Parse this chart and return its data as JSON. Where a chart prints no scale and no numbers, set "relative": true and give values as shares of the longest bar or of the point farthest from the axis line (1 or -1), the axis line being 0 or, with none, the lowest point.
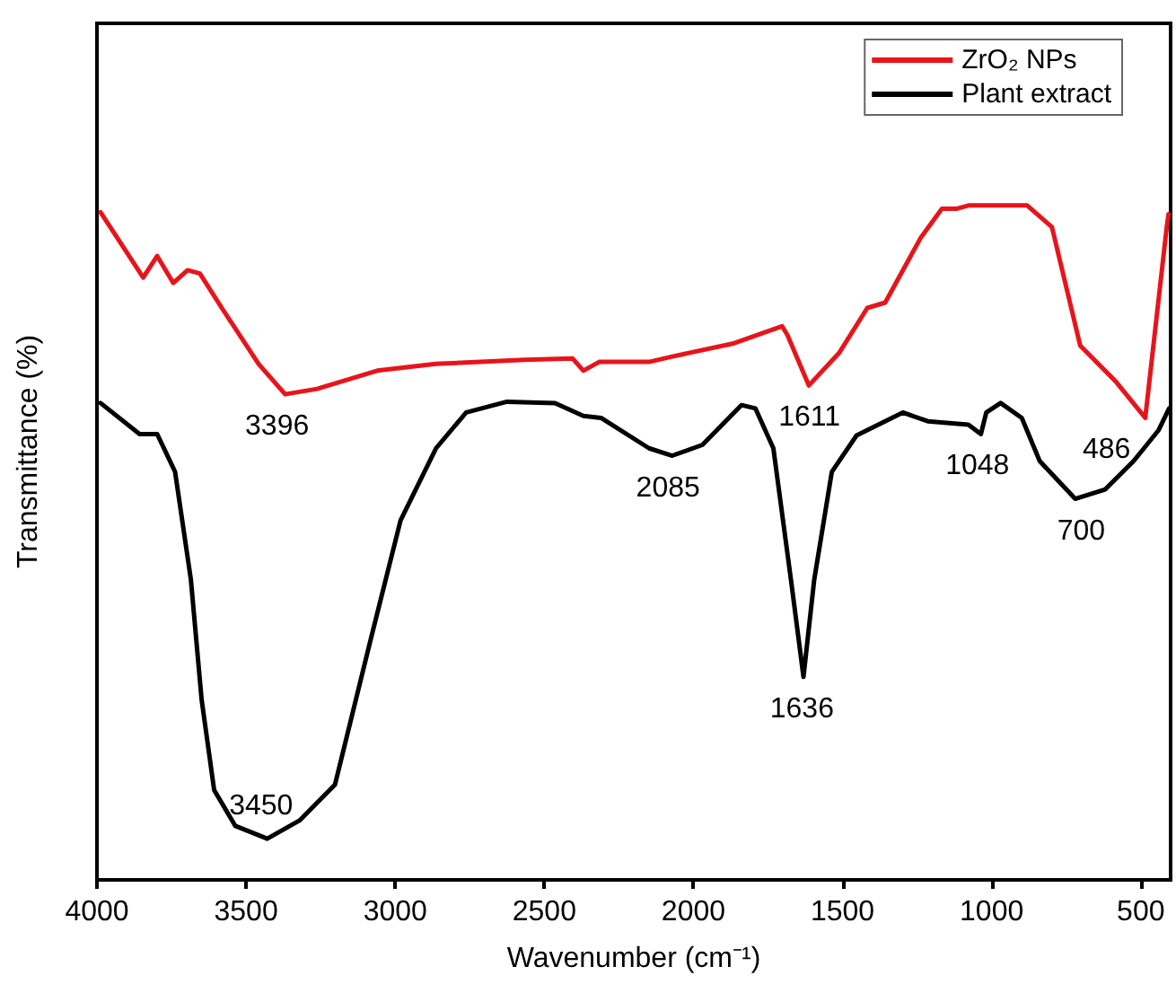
{
  "chart_data": {
    "type": "line",
    "xlabel": "Wavenumber (cm⁻¹)",
    "ylabel": "Transmittance (%)",
    "relative": true,
    "xlim": [
      4000,
      400
    ],
    "xticks": [
      4000,
      3500,
      3000,
      2500,
      2000,
      1500,
      1000,
      500
    ],
    "legend": "top right",
    "grid": false,
    "marker": "none",
    "line_style": "solid",
    "series": [
      {
        "name": "ZrO₂ NPs",
        "color": "#e8141b",
        "x": [
          3988,
          3845,
          3798,
          3744,
          3696,
          3655,
          3577,
          3458,
          3369,
          3262,
          3060,
          2863,
          2566,
          2405,
          2369,
          2316,
          2149,
          2071,
          1869,
          1703,
          1685,
          1613,
          1512,
          1417,
          1357,
          1238,
          1167,
          1119,
          1078,
          881,
          798,
          703,
          584,
          485,
          413,
          407
        ],
        "values": [
          0.99,
          0.893,
          0.925,
          0.885,
          0.904,
          0.899,
          0.845,
          0.765,
          0.72,
          0.728,
          0.755,
          0.765,
          0.771,
          0.773,
          0.755,
          0.768,
          0.768,
          0.776,
          0.795,
          0.821,
          0.808,
          0.733,
          0.781,
          0.848,
          0.856,
          0.952,
          0.995,
          0.995,
          1.0,
          1.0,
          0.968,
          0.792,
          0.739,
          0.685,
          0.968,
          0.987
        ]
      },
      {
        "name": "Plant extract",
        "color": "#000000",
        "x": [
          3988,
          3857,
          3798,
          3738,
          3685,
          3649,
          3607,
          3536,
          3429,
          3321,
          3202,
          3083,
          2982,
          2863,
          2762,
          2625,
          2464,
          2369,
          2310,
          2149,
          2071,
          1970,
          1839,
          1792,
          1732,
          1673,
          1631,
          1595,
          1536,
          1453,
          1298,
          1214,
          1078,
          1036,
          1018,
          970,
          899,
          839,
          720,
          619,
          524,
          440,
          405
        ],
        "values": [
          0.707,
          0.661,
          0.661,
          0.605,
          0.445,
          0.267,
          0.133,
          0.08,
          0.061,
          0.088,
          0.141,
          0.355,
          0.533,
          0.64,
          0.693,
          0.709,
          0.707,
          0.688,
          0.685,
          0.64,
          0.629,
          0.645,
          0.704,
          0.699,
          0.64,
          0.445,
          0.301,
          0.445,
          0.605,
          0.659,
          0.693,
          0.68,
          0.675,
          0.661,
          0.693,
          0.707,
          0.685,
          0.621,
          0.565,
          0.579,
          0.621,
          0.667,
          0.699
        ]
      }
    ],
    "annotations": [
      {
        "text": "3396",
        "x": 3396,
        "y": 0.72
      },
      {
        "text": "3450",
        "x": 3450,
        "y": 0.061
      },
      {
        "text": "2085",
        "x": 2085,
        "y": 0.629
      },
      {
        "text": "1611",
        "x": 1611,
        "y": 0.733
      },
      {
        "text": "1636",
        "x": 1636,
        "y": 0.301
      },
      {
        "text": "1048",
        "x": 1048,
        "y": 0.661
      },
      {
        "text": "700",
        "x": 700,
        "y": 0.565
      },
      {
        "text": "486",
        "x": 486,
        "y": 0.685
      }
    ]
  }
}
